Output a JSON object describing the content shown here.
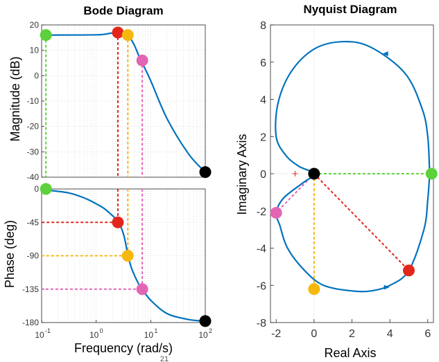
{
  "colors": {
    "curve": "#0072BD",
    "green": "#5bd13a",
    "red": "#e3261b",
    "yellow": "#f5b80f",
    "pink": "#e366b4",
    "black": "#000000"
  },
  "page_number": "21",
  "chart_data": [
    {
      "type": "line",
      "title": "Bode Diagram",
      "panel": "magnitude",
      "ylabel": "Magnitude (dB)",
      "xscale": "log",
      "xlim": [
        0.1,
        100
      ],
      "ylim": [
        -40,
        20
      ],
      "yticks": [
        20,
        10,
        0,
        -10,
        -20,
        -30,
        -40
      ],
      "grid": true,
      "curve": [
        [
          0.1,
          16
        ],
        [
          1,
          16.1
        ],
        [
          1.8,
          16.7
        ],
        [
          2.5,
          17
        ],
        [
          3.2,
          16.8
        ],
        [
          4,
          15.5
        ],
        [
          5,
          12
        ],
        [
          6,
          8
        ],
        [
          7,
          5
        ],
        [
          10,
          -2
        ],
        [
          20,
          -17
        ],
        [
          50,
          -31
        ],
        [
          100,
          -38
        ]
      ],
      "markers": [
        {
          "color": "green",
          "x": 0.12,
          "y": 16
        },
        {
          "color": "red",
          "x": 2.5,
          "y": 17
        },
        {
          "color": "yellow",
          "x": 3.8,
          "y": 16
        },
        {
          "color": "pink",
          "x": 7,
          "y": 6
        },
        {
          "color": "black",
          "x": 100,
          "y": -38
        }
      ]
    },
    {
      "type": "line",
      "panel": "phase",
      "xlabel": "Frequency  (rad/s)",
      "ylabel": "Phase (deg)",
      "xscale": "log",
      "xlim": [
        0.1,
        100
      ],
      "xticks": [
        {
          "value": 0.1,
          "base": "10",
          "exp": "-1"
        },
        {
          "value": 1,
          "base": "10",
          "exp": "0"
        },
        {
          "value": 10,
          "base": "10",
          "exp": "1"
        },
        {
          "value": 100,
          "base": "10",
          "exp": "2"
        }
      ],
      "ylim": [
        -180,
        0
      ],
      "yticks": [
        0,
        -45,
        -90,
        -135,
        -180
      ],
      "grid": true,
      "curve": [
        [
          0.1,
          -1
        ],
        [
          0.3,
          -5
        ],
        [
          0.6,
          -12
        ],
        [
          1,
          -20
        ],
        [
          1.5,
          -28
        ],
        [
          2.5,
          -44
        ],
        [
          3.2,
          -62
        ],
        [
          3.8,
          -88
        ],
        [
          4.5,
          -108
        ],
        [
          6,
          -128
        ],
        [
          7,
          -135
        ],
        [
          10,
          -150
        ],
        [
          20,
          -168
        ],
        [
          50,
          -176
        ],
        [
          100,
          -178
        ]
      ],
      "markers": [
        {
          "color": "green",
          "x": 0.12,
          "y": 0
        },
        {
          "color": "red",
          "x": 2.5,
          "y": -45
        },
        {
          "color": "yellow",
          "x": 3.8,
          "y": -90
        },
        {
          "color": "pink",
          "x": 7,
          "y": -135
        },
        {
          "color": "black",
          "x": 100,
          "y": -178
        }
      ]
    },
    {
      "type": "line",
      "title": "Nyquist Diagram",
      "xlabel": "Real Axis",
      "ylabel": "Imaginary Axis",
      "xlim": [
        -2.3,
        6.3
      ],
      "ylim": [
        -8,
        8
      ],
      "xticks": [
        -2,
        0,
        2,
        4,
        6
      ],
      "yticks": [
        8,
        6,
        4,
        2,
        0,
        -2,
        -4,
        -6,
        -8
      ],
      "grid": false,
      "curve": [
        [
          6.1,
          0
        ],
        [
          6,
          -1.4
        ],
        [
          5.8,
          -3
        ],
        [
          5,
          -5.2
        ],
        [
          4,
          -6
        ],
        [
          3,
          -6.3
        ],
        [
          2,
          -6.3
        ],
        [
          0.5,
          -6
        ],
        [
          -0.5,
          -5.2
        ],
        [
          -1.4,
          -4
        ],
        [
          -1.8,
          -2.8
        ],
        [
          -2,
          -2.1
        ],
        [
          -1.6,
          -1.3
        ],
        [
          -0.6,
          -0.5
        ],
        [
          0,
          0
        ],
        [
          -0.8,
          0.4
        ],
        [
          -1.5,
          1
        ],
        [
          -2,
          2
        ],
        [
          -1.9,
          3.8
        ],
        [
          -1.2,
          5.5
        ],
        [
          0,
          6.7
        ],
        [
          1.5,
          7.1
        ],
        [
          3,
          6.8
        ],
        [
          4.8,
          5.4
        ],
        [
          5.7,
          3.5
        ],
        [
          6,
          2
        ],
        [
          6.1,
          0
        ]
      ],
      "markers": [
        {
          "color": "green",
          "x": 6.2,
          "y": 0
        },
        {
          "color": "red",
          "x": 5,
          "y": -5.2
        },
        {
          "color": "yellow",
          "x": 0,
          "y": -6.2
        },
        {
          "color": "pink",
          "x": -2,
          "y": -2.1
        },
        {
          "color": "black",
          "x": 0,
          "y": 0
        }
      ]
    }
  ]
}
